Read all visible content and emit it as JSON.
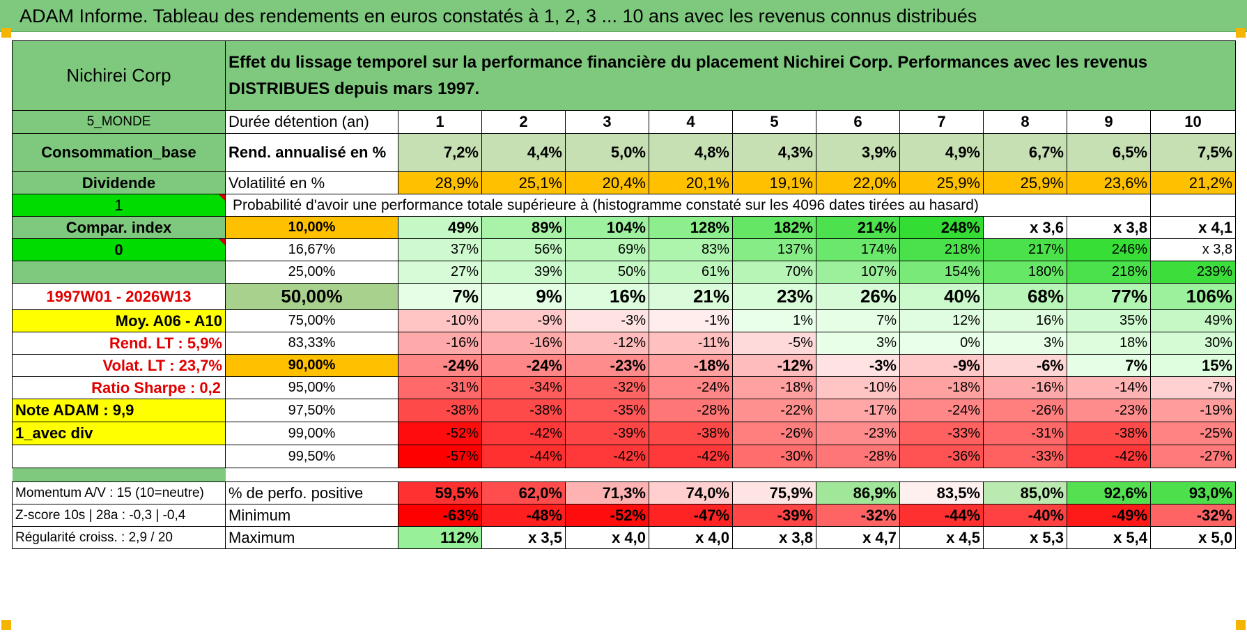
{
  "header": {
    "title": "ADAM Informe. Tableau des rendements en euros constatés à 1, 2, 3 ... 10 ans avec les revenus connus distribués"
  },
  "colors": {
    "header_green": "#7ec97e",
    "bright_green": "#00dc00",
    "yellow": "#ffff00",
    "orange": "#ffc000",
    "red_text": "#e00000",
    "red_strong": "#ff0000",
    "green_strong": "#2fd82f"
  },
  "table": {
    "asset_name": "Nichirei Corp",
    "description": "Effet du lissage temporel sur la performance financière du placement Nichirei Corp. Performances avec les revenus DISTRIBUES depuis mars 1997.",
    "durations_label": "Durée détention (an)",
    "durations": [
      "1",
      "2",
      "3",
      "4",
      "5",
      "6",
      "7",
      "8",
      "9",
      "10"
    ],
    "rend_label": "Rend. annualisé en %",
    "rend": [
      "7,2%",
      "4,4%",
      "5,0%",
      "4,8%",
      "4,3%",
      "3,9%",
      "4,9%",
      "6,7%",
      "6,5%",
      "7,5%"
    ],
    "vol_label": "Volatilité en %",
    "vol": [
      "28,9%",
      "25,1%",
      "20,4%",
      "20,1%",
      "19,1%",
      "22,0%",
      "25,9%",
      "25,9%",
      "23,6%",
      "21,2%"
    ],
    "prob_title": "Probabilité d'avoir une performance totale supérieure à (histogramme constaté sur les 4096 dates tirées au hasard)",
    "left": {
      "zone": "5_MONDE",
      "sector": "Consommation_base",
      "dividend": "Dividende",
      "one": "1",
      "compar": "Compar. index",
      "zero": "0",
      "period": "1997W01 - 2026W13",
      "moy": "Moy. A06 - A10",
      "rend_lt": "Rend. LT :   5,9%",
      "volat_lt": "Volat. LT :   23,7%",
      "sharpe": "Ratio Sharpe :    0,2",
      "note": "Note ADAM : 9,9",
      "avec_div": "1_avec div",
      "momentum": "Momentum A/V : 15 (10=neutre)",
      "zscore": "Z-score 10s | 28a : -0,3 | -0,4",
      "regularite": "Régularité croiss. : 2,9 / 20"
    },
    "prob_rows": [
      {
        "threshold": "10,00%",
        "values": [
          "49%",
          "89%",
          "104%",
          "128%",
          "182%",
          "214%",
          "248%",
          "x 3,6",
          "x 3,8",
          "x 4,1"
        ]
      },
      {
        "threshold": "16,67%",
        "values": [
          "37%",
          "56%",
          "69%",
          "83%",
          "137%",
          "174%",
          "218%",
          "217%",
          "246%",
          "x 3,8"
        ]
      },
      {
        "threshold": "25,00%",
        "values": [
          "27%",
          "39%",
          "50%",
          "61%",
          "70%",
          "107%",
          "154%",
          "180%",
          "218%",
          "239%"
        ]
      },
      {
        "threshold": "50,00%",
        "values": [
          "7%",
          "9%",
          "16%",
          "21%",
          "23%",
          "26%",
          "40%",
          "68%",
          "77%",
          "106%"
        ]
      },
      {
        "threshold": "75,00%",
        "values": [
          "-10%",
          "-9%",
          "-3%",
          "-1%",
          "1%",
          "7%",
          "12%",
          "16%",
          "35%",
          "49%"
        ]
      },
      {
        "threshold": "83,33%",
        "values": [
          "-16%",
          "-16%",
          "-12%",
          "-11%",
          "-5%",
          "3%",
          "0%",
          "3%",
          "18%",
          "30%"
        ]
      },
      {
        "threshold": "90,00%",
        "values": [
          "-24%",
          "-24%",
          "-23%",
          "-18%",
          "-12%",
          "-3%",
          "-9%",
          "-6%",
          "7%",
          "15%"
        ]
      },
      {
        "threshold": "95,00%",
        "values": [
          "-31%",
          "-34%",
          "-32%",
          "-24%",
          "-18%",
          "-10%",
          "-18%",
          "-16%",
          "-14%",
          "-7%"
        ]
      },
      {
        "threshold": "97,50%",
        "values": [
          "-38%",
          "-38%",
          "-35%",
          "-28%",
          "-22%",
          "-17%",
          "-24%",
          "-26%",
          "-23%",
          "-19%"
        ]
      },
      {
        "threshold": "99,00%",
        "values": [
          "-52%",
          "-42%",
          "-39%",
          "-38%",
          "-26%",
          "-23%",
          "-33%",
          "-31%",
          "-38%",
          "-25%"
        ]
      },
      {
        "threshold": "99,50%",
        "values": [
          "-57%",
          "-44%",
          "-42%",
          "-42%",
          "-30%",
          "-28%",
          "-36%",
          "-33%",
          "-42%",
          "-27%"
        ]
      }
    ],
    "pos_label": "% de perfo. positive",
    "pos": [
      "59,5%",
      "62,0%",
      "71,3%",
      "74,0%",
      "75,9%",
      "86,9%",
      "83,5%",
      "85,0%",
      "92,6%",
      "93,0%"
    ],
    "min_label": "Minimum",
    "min": [
      "-63%",
      "-48%",
      "-52%",
      "-47%",
      "-39%",
      "-32%",
      "-44%",
      "-40%",
      "-49%",
      "-32%"
    ],
    "max_label": "Maximum",
    "max": [
      "112%",
      "x 3,5",
      "x 4,0",
      "x 4,0",
      "x 3,8",
      "x 4,7",
      "x 4,5",
      "x 5,3",
      "x 5,4",
      "x 5,0"
    ]
  }
}
